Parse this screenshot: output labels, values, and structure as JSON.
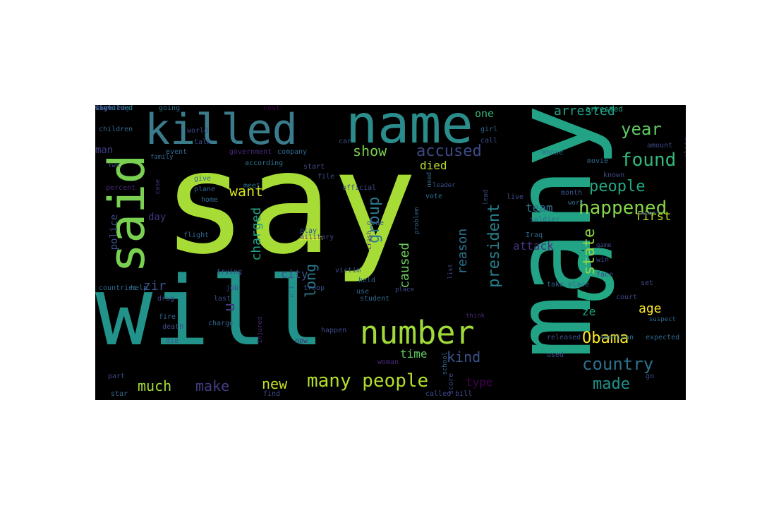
{
  "wordcloud": {
    "background": "#000000",
    "words": [
      {
        "text": "say",
        "color": "#a7dc37"
      },
      {
        "text": "will",
        "color": "#22938b"
      },
      {
        "text": "many",
        "color": "#22a385"
      },
      {
        "text": "s",
        "color": "#23a884"
      },
      {
        "text": "name",
        "color": "#2b8c8c"
      },
      {
        "text": "killed",
        "color": "#3b7c8c"
      },
      {
        "text": "said",
        "color": "#7ad151"
      },
      {
        "text": "number",
        "color": "#a0da39"
      },
      {
        "text": "many people",
        "color": "#b5de2b"
      },
      {
        "text": "happened",
        "color": "#86d549"
      },
      {
        "text": "found",
        "color": "#35b779"
      },
      {
        "text": "country",
        "color": "#2c728e"
      },
      {
        "text": "Obama",
        "color": "#fde725"
      },
      {
        "text": "people",
        "color": "#22a884"
      },
      {
        "text": "accused",
        "color": "#3e4a89"
      },
      {
        "text": "year",
        "color": "#5ec962"
      },
      {
        "text": "made",
        "color": "#21918c"
      },
      {
        "text": "much",
        "color": "#a2da37"
      },
      {
        "text": "make",
        "color": "#433e85"
      },
      {
        "text": "show",
        "color": "#7ad151"
      },
      {
        "text": "arrested",
        "color": "#20a486"
      },
      {
        "text": "president",
        "color": "#27808e"
      },
      {
        "text": "state",
        "color": "#8fd744"
      },
      {
        "text": "kind",
        "color": "#3b528b"
      },
      {
        "text": "long",
        "color": "#2a788e"
      },
      {
        "text": "group",
        "color": "#2a788e"
      },
      {
        "text": "want",
        "color": "#d5e21a"
      },
      {
        "text": "age",
        "color": "#fde725"
      },
      {
        "text": "new",
        "color": "#c7e020"
      },
      {
        "text": "caused",
        "color": "#6ccd5a"
      },
      {
        "text": "reason",
        "color": "#2c728e"
      },
      {
        "text": "charged",
        "color": "#20a386"
      },
      {
        "text": "first",
        "color": "#bddf26"
      },
      {
        "text": "u",
        "color": "#443983"
      },
      {
        "text": "zir",
        "color": "#3b528b"
      },
      {
        "text": "time",
        "color": "#5ec962"
      },
      {
        "text": "team",
        "color": "#2c728e"
      },
      {
        "text": "type",
        "color": "#440154"
      },
      {
        "text": "attack",
        "color": "#46337e"
      },
      {
        "text": "died",
        "color": "#b5de2b"
      },
      {
        "text": "city",
        "color": "#3b528b"
      },
      {
        "text": "police",
        "color": "#3b528b"
      },
      {
        "text": "ze",
        "color": "#20a486"
      },
      {
        "text": "day",
        "color": "#46337e"
      },
      {
        "text": "man",
        "color": "#433e85"
      },
      {
        "text": "one",
        "color": "#35b779"
      },
      {
        "text": "arrested",
        "color": "#20a486"
      },
      {
        "text": "involved",
        "color": "#21918c"
      },
      {
        "text": "going",
        "color": "#2c728e"
      },
      {
        "text": "cost",
        "color": "#440154"
      },
      {
        "text": "children",
        "color": "#31688e"
      },
      {
        "text": "event",
        "color": "#31688e"
      },
      {
        "text": "government",
        "color": "#482878"
      },
      {
        "text": "company",
        "color": "#31688e"
      },
      {
        "text": "according",
        "color": "#2c728e"
      },
      {
        "text": "family",
        "color": "#31688e"
      },
      {
        "text": "case",
        "color": "#46337e"
      },
      {
        "text": "start",
        "color": "#3e4a89"
      },
      {
        "text": "file",
        "color": "#3e4a89"
      },
      {
        "text": "official",
        "color": "#3e4a89"
      },
      {
        "text": "need",
        "color": "#31688e"
      },
      {
        "text": "leader",
        "color": "#3b528b"
      },
      {
        "text": "vote",
        "color": "#2c728e"
      },
      {
        "text": "done",
        "color": "#3b528b"
      },
      {
        "text": "give",
        "color": "#31688e"
      },
      {
        "text": "plane",
        "color": "#31688e"
      },
      {
        "text": "meet",
        "color": "#2c728e"
      },
      {
        "text": "home",
        "color": "#31688e"
      },
      {
        "text": "flight",
        "color": "#31688e"
      },
      {
        "text": "play",
        "color": "#3b528b"
      },
      {
        "text": "person",
        "color": "#fde725"
      },
      {
        "text": "crash",
        "color": "#482878"
      },
      {
        "text": "problem",
        "color": "#31688e"
      },
      {
        "text": "drug",
        "color": "#3e4a89"
      },
      {
        "text": "last",
        "color": "#3e4a89"
      },
      {
        "text": "troop",
        "color": "#3b528b"
      },
      {
        "text": "victim",
        "color": "#3b528b"
      },
      {
        "text": "held",
        "color": "#31688e"
      },
      {
        "text": "use",
        "color": "#31688e"
      },
      {
        "text": "place",
        "color": "#3e4a89"
      },
      {
        "text": "list",
        "color": "#3e4a89"
      },
      {
        "text": "countries",
        "color": "#31688e"
      },
      {
        "text": "help",
        "color": "#31688e"
      },
      {
        "text": "job",
        "color": "#3e4a89"
      },
      {
        "text": "charge",
        "color": "#31688e"
      },
      {
        "text": "injured",
        "color": "#482878"
      },
      {
        "text": "happen",
        "color": "#3e4a89"
      },
      {
        "text": "student",
        "color": "#31688e"
      },
      {
        "text": "take place",
        "color": "#31688e"
      },
      {
        "text": "think",
        "color": "#482878"
      },
      {
        "text": "suspect",
        "color": "#31688e"
      },
      {
        "text": "released",
        "color": "#3b528b"
      },
      {
        "text": "American",
        "color": "#2c728e"
      },
      {
        "text": "expected",
        "color": "#31688e"
      },
      {
        "text": "used",
        "color": "#3e4a89"
      },
      {
        "text": "go",
        "color": "#3e4a89"
      },
      {
        "text": "part",
        "color": "#3e4a89"
      },
      {
        "text": "star",
        "color": "#31688e"
      },
      {
        "text": "fire",
        "color": "#31688e"
      },
      {
        "text": "death",
        "color": "#3e4a89"
      },
      {
        "text": "die",
        "color": "#3b528b"
      },
      {
        "text": "now",
        "color": "#482878"
      },
      {
        "text": "woman",
        "color": "#482878"
      },
      {
        "text": "find",
        "color": "#3e4a89"
      },
      {
        "text": "school",
        "color": "#31688e"
      },
      {
        "text": "score",
        "color": "#3e4a89"
      },
      {
        "text": "called bill",
        "color": "#3e4a89"
      },
      {
        "text": "percent",
        "color": "#482878"
      },
      {
        "text": "girl",
        "color": "#31688e"
      },
      {
        "text": "call",
        "color": "#3e4a89"
      },
      {
        "text": "Whose",
        "color": "#2c728e"
      },
      {
        "text": "movie",
        "color": "#31688e"
      },
      {
        "text": "known",
        "color": "#3e4a89"
      },
      {
        "text": "amount",
        "color": "#3e4a89"
      },
      {
        "text": "claim",
        "color": "#3e4a89"
      },
      {
        "text": "month",
        "color": "#3b528b"
      },
      {
        "text": "work",
        "color": "#31688e"
      },
      {
        "text": "live",
        "color": "#3e4a89"
      },
      {
        "text": "soldier",
        "color": "#31688e"
      },
      {
        "text": "Iraq",
        "color": "#31688e"
      },
      {
        "text": "win",
        "color": "#3e4a89"
      },
      {
        "text": "face",
        "color": "#3e4a89"
      },
      {
        "text": "set",
        "color": "#3e4a89"
      },
      {
        "text": "court",
        "color": "#3e4a89"
      },
      {
        "text": "report",
        "color": "#3e4a89"
      },
      {
        "text": "lead",
        "color": "#3e4a89"
      },
      {
        "text": "two",
        "color": "#3e4a89"
      },
      {
        "text": "talk",
        "color": "#3e4a89"
      },
      {
        "text": "world",
        "color": "#3e4a89"
      },
      {
        "text": "trying",
        "color": "#3e4a89"
      },
      {
        "text": "military",
        "color": "#3e4a89"
      },
      {
        "text": "car",
        "color": "#3e4a89"
      },
      {
        "text": "hit",
        "color": "#3e4a89"
      },
      {
        "text": "game",
        "color": "#3e4a89"
      },
      {
        "text": "n't",
        "color": "#31688e"
      },
      {
        "text": "way",
        "color": "#31688e"
      },
      {
        "text": "located",
        "color": "#3e4a89"
      },
      {
        "text": "fighting",
        "color": "#3e4a89"
      },
      {
        "text": "shot",
        "color": "#3e4a89"
      }
    ]
  }
}
